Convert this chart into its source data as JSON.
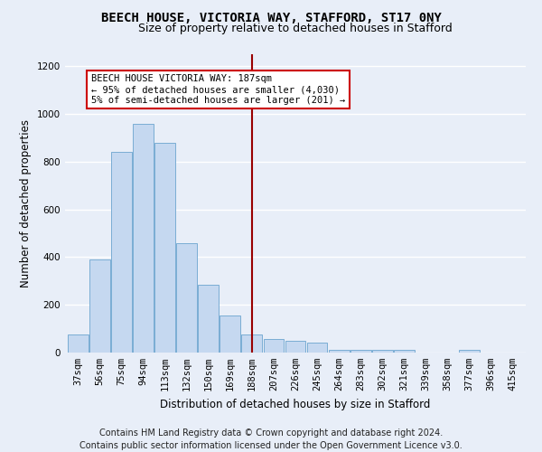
{
  "title": "BEECH HOUSE, VICTORIA WAY, STAFFORD, ST17 0NY",
  "subtitle": "Size of property relative to detached houses in Stafford",
  "xlabel": "Distribution of detached houses by size in Stafford",
  "ylabel": "Number of detached properties",
  "footer_line1": "Contains HM Land Registry data © Crown copyright and database right 2024.",
  "footer_line2": "Contains public sector information licensed under the Open Government Licence v3.0.",
  "categories": [
    "37sqm",
    "56sqm",
    "75sqm",
    "94sqm",
    "113sqm",
    "132sqm",
    "150sqm",
    "169sqm",
    "188sqm",
    "207sqm",
    "226sqm",
    "245sqm",
    "264sqm",
    "283sqm",
    "302sqm",
    "321sqm",
    "339sqm",
    "358sqm",
    "377sqm",
    "396sqm",
    "415sqm"
  ],
  "values": [
    75,
    390,
    840,
    960,
    880,
    460,
    285,
    155,
    75,
    55,
    50,
    40,
    10,
    10,
    10,
    10,
    0,
    0,
    10,
    0,
    0
  ],
  "bar_color": "#c5d8f0",
  "bar_edge_color": "#7aadd4",
  "vline_x_index": 8,
  "vline_color": "#990000",
  "annotation_title": "BEECH HOUSE VICTORIA WAY: 187sqm",
  "annotation_line2": "← 95% of detached houses are smaller (4,030)",
  "annotation_line3": "5% of semi-detached houses are larger (201) →",
  "annotation_box_facecolor": "#ffffff",
  "annotation_box_edgecolor": "#cc0000",
  "ylim": [
    0,
    1250
  ],
  "yticks": [
    0,
    200,
    400,
    600,
    800,
    1000,
    1200
  ],
  "bg_color": "#e8eef8",
  "grid_color": "#ffffff",
  "title_fontsize": 10,
  "subtitle_fontsize": 9,
  "axis_label_fontsize": 8.5,
  "tick_fontsize": 7.5,
  "annotation_fontsize": 7.5,
  "footer_fontsize": 7
}
